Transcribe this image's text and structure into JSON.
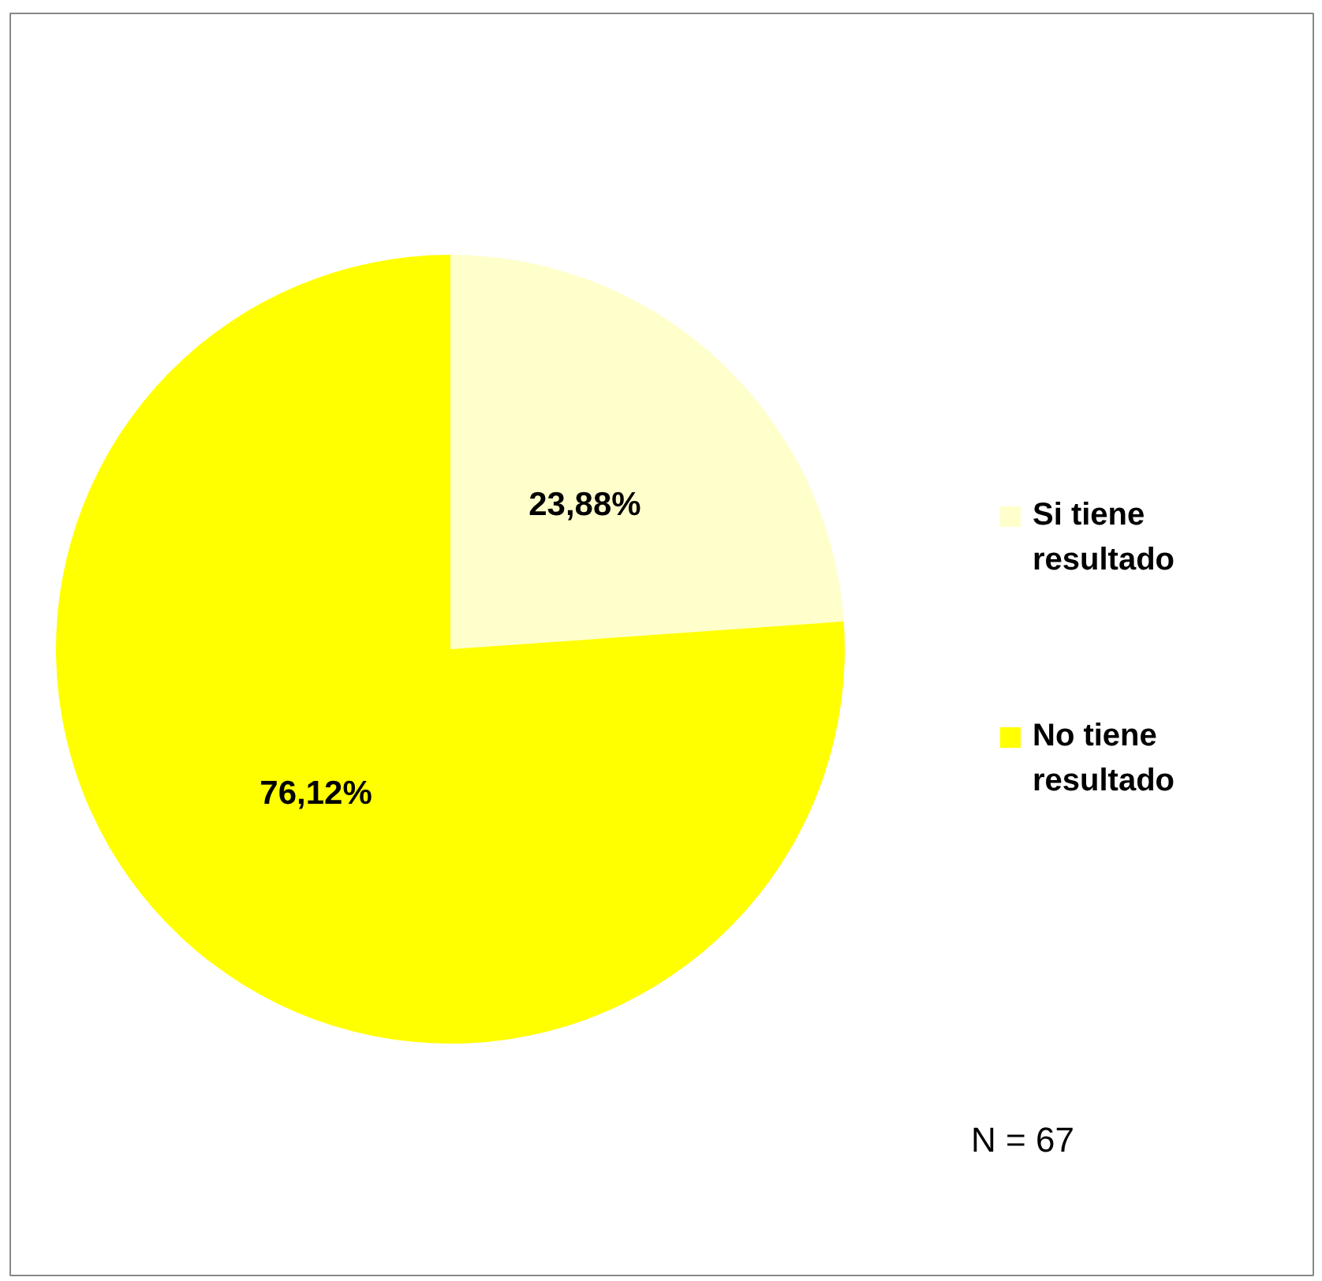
{
  "chart_data": {
    "type": "pie",
    "categories": [
      "Si tiene resultado",
      "No tiene resultado"
    ],
    "values": [
      23.88,
      76.12
    ],
    "colors": [
      "#ffffcc",
      "#ffff00"
    ],
    "value_labels": [
      "23,88%",
      "76,12%"
    ],
    "legend": "right",
    "annotations": [
      "N = 67"
    ]
  }
}
